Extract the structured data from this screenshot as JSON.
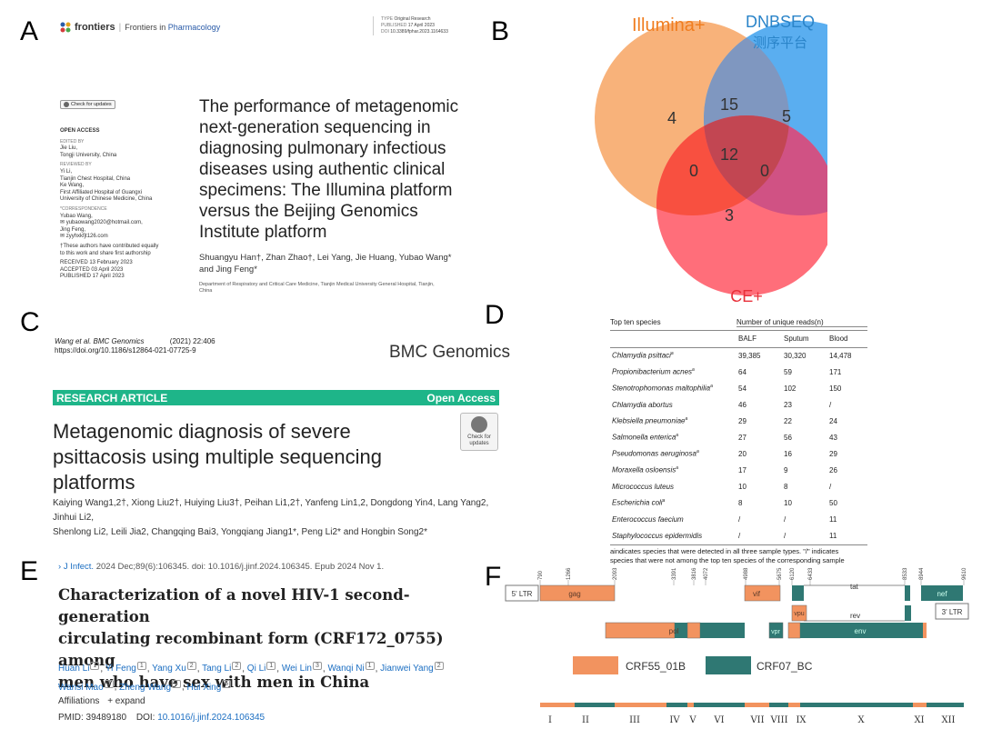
{
  "panels": {
    "a": "A",
    "b": "B",
    "c": "C",
    "d": "D",
    "e": "E",
    "f": "F"
  },
  "panelA": {
    "publisher": "frontiers",
    "journal_prefix": "Frontiers in",
    "journal_name": "Pharmacology",
    "meta": [
      {
        "k": "TYPE",
        "v": "Original Research"
      },
      {
        "k": "PUBLISHED",
        "v": "17 April 2023"
      },
      {
        "k": "DOI",
        "v": "10.3389/fphar.2023.1164633"
      }
    ],
    "check_updates": "Check for updates",
    "open_access": "OPEN ACCESS",
    "side_lines": [
      {
        "t": "EDITED BY",
        "c": "cap"
      },
      {
        "t": "Jie Liu,",
        "c": ""
      },
      {
        "t": "Tongji University, China",
        "c": ""
      },
      {
        "t": "REVIEWED BY",
        "c": "cap"
      },
      {
        "t": "Yi Li,",
        "c": ""
      },
      {
        "t": "Tianjin Chest Hospital, China",
        "c": ""
      },
      {
        "t": "Ke Wang,",
        "c": ""
      },
      {
        "t": "First Affiliated Hospital of Guangxi",
        "c": ""
      },
      {
        "t": "University of Chinese Medicine, China",
        "c": ""
      },
      {
        "t": "*CORRESPONDENCE",
        "c": "cap"
      },
      {
        "t": "Yubao Wang,",
        "c": ""
      },
      {
        "t": "✉ yubaowang2020@hotmail.com,",
        "c": ""
      },
      {
        "t": "Jing Feng,",
        "c": ""
      },
      {
        "t": "✉ zyyhxkfjt126.com",
        "c": ""
      },
      {
        "t": "†These authors have contributed equally",
        "c": ""
      },
      {
        "t": "to this work and share first authorship",
        "c": ""
      },
      {
        "t": "RECEIVED 13 February 2023",
        "c": ""
      },
      {
        "t": "ACCEPTED 03 April 2023",
        "c": ""
      },
      {
        "t": "PUBLISHED 17 April 2023",
        "c": ""
      }
    ],
    "title_lines": [
      "The performance of metagenomic",
      "next-generation sequencing in",
      "diagnosing pulmonary infectious",
      "diseases using authentic clinical",
      "specimens: The Illumina platform",
      "versus the Beijing Genomics",
      "Institute platform"
    ],
    "authors_lines": [
      "Shuangyu Han†, Zhan Zhao†, Lei Yang, Jie Huang, Yubao Wang*",
      "and Jing Feng*"
    ],
    "dept_lines": [
      "Department of Respiratory and Critical Care Medicine, Tianjin Medical University General Hospital, Tianjin,",
      "China"
    ]
  },
  "panelB": {
    "sets": [
      {
        "name": "Illumina+",
        "color": "#f59a4a"
      },
      {
        "name": "DNBSEQ",
        "subname": "测序平台",
        "color": "#2f8fd9"
      },
      {
        "name": "CE+",
        "color": "#e8303a"
      }
    ],
    "counts": {
      "illumina_only": "4",
      "dnbseq_only": "5",
      "ce_only": "3",
      "illumina_dnbseq": "15",
      "illumina_ce": "0",
      "dnbseq_ce": "0",
      "all_three": "12"
    }
  },
  "panelC": {
    "cite_line1": "Wang et al. BMC Genomics",
    "cite_year": "(2021) 22:406",
    "cite_doi": "https://doi.org/10.1186/s12864-021-07725-9",
    "journal": "BMC Genomics",
    "bar_left": "RESEARCH ARTICLE",
    "bar_right": "Open Access",
    "check_updates_1": "Check for",
    "check_updates_2": "updates",
    "title_lines": [
      "Metagenomic diagnosis of severe",
      "psittacosis using multiple sequencing",
      "platforms"
    ],
    "authors_lines": [
      "Kaiying Wang1,2†, Xiong Liu2†, Huiying Liu3†, Peihan Li1,2†, Yanfeng Lin1,2, Dongdong Yin4, Lang Yang2, Jinhui Li2,",
      "Shenlong Li2, Leili Jia2, Changqing Bai3, Yongqiang Jiang1*, Peng Li2* and Hongbin Song2*"
    ]
  },
  "panelD": {
    "header_species": "Top ten species",
    "header_reads": "Number of unique reads(n)",
    "cols": [
      "BALF",
      "Sputum",
      "Blood"
    ],
    "rows": [
      {
        "species": "Chlamydia psittaci",
        "sup": "a",
        "v": [
          "39,385",
          "30,320",
          "14,478"
        ]
      },
      {
        "species": "Propionibacterium acnes",
        "sup": "a",
        "v": [
          "64",
          "59",
          "171"
        ]
      },
      {
        "species": "Stenotrophomonas maltophilia",
        "sup": "a",
        "v": [
          "54",
          "102",
          "150"
        ]
      },
      {
        "species": "Chlamydia abortus",
        "sup": "",
        "v": [
          "46",
          "23",
          "/"
        ]
      },
      {
        "species": "Klebsiella pneumoniae",
        "sup": "a",
        "v": [
          "29",
          "22",
          "24"
        ]
      },
      {
        "species": "Salmonella enterica",
        "sup": "a",
        "v": [
          "27",
          "56",
          "43"
        ]
      },
      {
        "species": "Pseudomonas aeruginosa",
        "sup": "a",
        "v": [
          "20",
          "16",
          "29"
        ]
      },
      {
        "species": "Moraxella osloensis",
        "sup": "a",
        "v": [
          "17",
          "9",
          "26"
        ]
      },
      {
        "species": "Micrococcus luteus",
        "sup": "",
        "v": [
          "10",
          "8",
          "/"
        ]
      },
      {
        "species": "Escherichia coli",
        "sup": "a",
        "v": [
          "8",
          "10",
          "50"
        ]
      },
      {
        "species": "Enterococcus faecium",
        "sup": "",
        "v": [
          "/",
          "/",
          "11"
        ]
      },
      {
        "species": "Staphylococcus epidermidis",
        "sup": "",
        "v": [
          "/",
          "/",
          "11"
        ]
      }
    ],
    "footnote_1": "aindicates species that were detected in all three sample types. \"/\" indicates",
    "footnote_2": "species that were not among the top ten species of the corresponding sample"
  },
  "panelE": {
    "journal_link": "J Infect.",
    "journal_rest": "2024 Dec;89(6):106345. doi: 10.1016/j.jinf.2024.106345. Epub 2024 Nov 1.",
    "title_lines": [
      "Characterization of a novel HIV-1 second-generation",
      "circulating recombinant form (CRF172_0755) among",
      "men who have sex with men in China"
    ],
    "authors_row1": [
      {
        "n": "Huan Li",
        "s": "1"
      },
      {
        "n": "Yi Feng",
        "s": "1"
      },
      {
        "n": "Yang Xu",
        "s": "2"
      },
      {
        "n": "Tang Li",
        "s": "2"
      },
      {
        "n": "Qi Li",
        "s": "1"
      },
      {
        "n": "Wei Lin",
        "s": "3"
      },
      {
        "n": "Wanqi Ni",
        "s": "1"
      },
      {
        "n": "Jianwei Yang",
        "s": "2"
      }
    ],
    "authors_row2": [
      {
        "n": "Wansi Mao",
        "s": "2"
      },
      {
        "n": "Zheng Wang",
        "s": "4"
      },
      {
        "n": "Hui Xing",
        "s": "5"
      }
    ],
    "affiliations": "Affiliations",
    "expand": "+ expand",
    "pmid_label": "PMID: 39489180",
    "doi_label": "DOI:",
    "doi_link": "10.1016/j.jinf.2024.106345"
  },
  "panelF": {
    "colors": {
      "crf55": "#f2935f",
      "crf07": "#2f7873"
    },
    "positions": [
      "790",
      "1266",
      "2093",
      "3391",
      "3816",
      "4072",
      "4988",
      "5675",
      "6120",
      "6433",
      "8533",
      "8944",
      "9610"
    ],
    "genes": {
      "ltr5": "5' LTR",
      "gag": "gag",
      "vif": "vif",
      "vpu": "vpu",
      "tat": "tat",
      "nef": "nef",
      "ltr3": "3' LTR",
      "pol": "pol",
      "vpr": "vpr",
      "rev": "rev",
      "env": "env"
    },
    "legend": [
      {
        "name": "CRF55_01B",
        "key": "crf55"
      },
      {
        "name": "CRF07_BC",
        "key": "crf07"
      }
    ],
    "regions": [
      "I",
      "II",
      "III",
      "IV",
      "V",
      "VI",
      "VII",
      "VIII",
      "IX",
      "X",
      "XI",
      "XII"
    ]
  }
}
